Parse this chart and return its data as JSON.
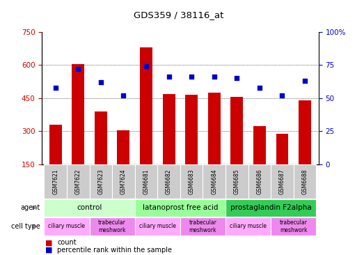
{
  "title": "GDS359 / 38116_at",
  "samples": [
    "GSM7621",
    "GSM7622",
    "GSM7623",
    "GSM7624",
    "GSM6681",
    "GSM6682",
    "GSM6683",
    "GSM6684",
    "GSM6685",
    "GSM6686",
    "GSM6687",
    "GSM6688"
  ],
  "counts": [
    330,
    605,
    390,
    305,
    680,
    470,
    465,
    475,
    455,
    325,
    290,
    440
  ],
  "percentiles": [
    58,
    72,
    62,
    52,
    74,
    66,
    66,
    66,
    65,
    58,
    52,
    63
  ],
  "ylim_left": [
    150,
    750
  ],
  "ylim_right": [
    0,
    100
  ],
  "yticks_left": [
    150,
    300,
    450,
    600,
    750
  ],
  "yticks_right": [
    0,
    25,
    50,
    75,
    100
  ],
  "bar_color": "#cc0000",
  "dot_color": "#0000cc",
  "agent_groups": [
    {
      "label": "control",
      "span": [
        0,
        4
      ],
      "color": "#ccffcc"
    },
    {
      "label": "latanoprost free acid",
      "span": [
        4,
        8
      ],
      "color": "#99ff99"
    },
    {
      "label": "prostaglandin F2alpha",
      "span": [
        8,
        12
      ],
      "color": "#33cc55"
    }
  ],
  "cell_type_groups": [
    {
      "label": "ciliary muscle",
      "span": [
        0,
        2
      ],
      "color": "#ffaaff"
    },
    {
      "label": "trabecular\nmeshwork",
      "span": [
        2,
        4
      ],
      "color": "#ee88ee"
    },
    {
      "label": "ciliary muscle",
      "span": [
        4,
        6
      ],
      "color": "#ffaaff"
    },
    {
      "label": "trabecular\nmeshwork",
      "span": [
        6,
        8
      ],
      "color": "#ee88ee"
    },
    {
      "label": "ciliary muscle",
      "span": [
        8,
        10
      ],
      "color": "#ffaaff"
    },
    {
      "label": "trabecular\nmeshwork",
      "span": [
        10,
        12
      ],
      "color": "#ee88ee"
    }
  ],
  "bar_color_red": "#cc0000",
  "dot_color_blue": "#0000cc",
  "grid_color": "#000000",
  "tick_color_left": "#cc0000",
  "tick_color_right": "#0000cc",
  "bg_color": "#ffffff",
  "sample_bg_color": "#cccccc",
  "arrow_color": "#999999",
  "label_fontsize": 7,
  "tick_fontsize": 7.5,
  "sample_fontsize": 5.5,
  "cell_fontsize": 5.5,
  "agent_fontsize": 7.5
}
